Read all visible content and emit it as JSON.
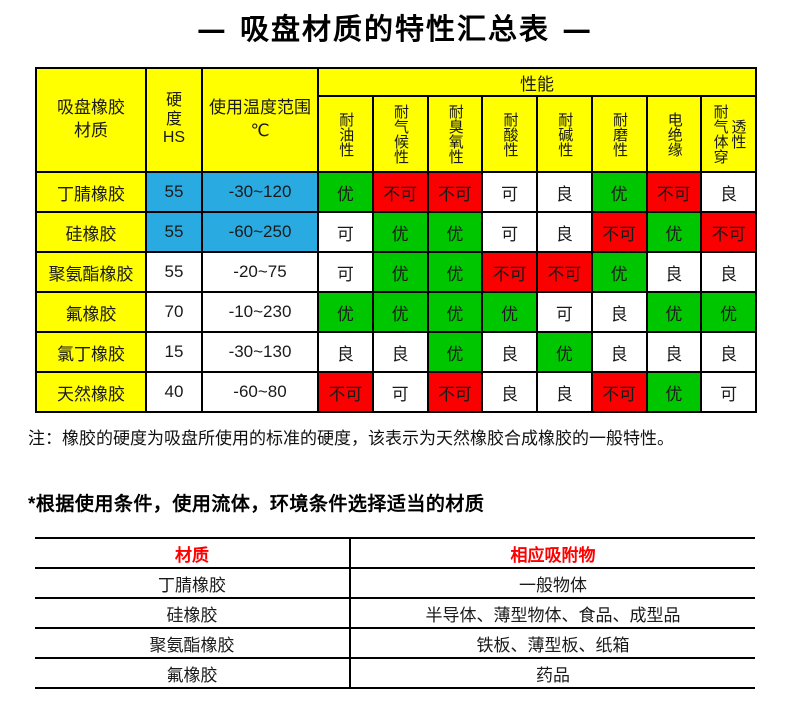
{
  "title": "— 吸盘材质的特性汇总表 —",
  "main_table": {
    "col_material": "吸盘橡胶\n材质",
    "col_hardness": "硬\n度\nHS",
    "col_temp": "使用温度范围\n℃",
    "perf_group": "性能",
    "perf_headers": [
      "耐油性",
      "耐气候性",
      "耐臭氧性",
      "耐酸性",
      "耐碱性",
      "耐磨性",
      "电绝缘",
      "耐气体穿透性"
    ],
    "legend_colors": {
      "yellow": "#ffff00",
      "blue": "#29abe2",
      "green": "#00c600",
      "red": "#fb0000",
      "white": "#ffffff"
    },
    "rows": [
      {
        "material": "丁腈橡胶",
        "hardness": "55",
        "hardness_bg": "blue",
        "temp": "-30~120",
        "temp_bg": "blue",
        "perf": [
          {
            "t": "优",
            "bg": "green"
          },
          {
            "t": "不可",
            "bg": "red"
          },
          {
            "t": "不可",
            "bg": "red"
          },
          {
            "t": "可",
            "bg": "white"
          },
          {
            "t": "良",
            "bg": "white"
          },
          {
            "t": "优",
            "bg": "green"
          },
          {
            "t": "不可",
            "bg": "red"
          },
          {
            "t": "良",
            "bg": "white"
          }
        ]
      },
      {
        "material": "硅橡胶",
        "hardness": "55",
        "hardness_bg": "blue",
        "temp": "-60~250",
        "temp_bg": "blue",
        "perf": [
          {
            "t": "可",
            "bg": "white"
          },
          {
            "t": "优",
            "bg": "green"
          },
          {
            "t": "优",
            "bg": "green"
          },
          {
            "t": "可",
            "bg": "white"
          },
          {
            "t": "良",
            "bg": "white"
          },
          {
            "t": "不可",
            "bg": "red"
          },
          {
            "t": "优",
            "bg": "green"
          },
          {
            "t": "不可",
            "bg": "red"
          }
        ]
      },
      {
        "material": "聚氨酯橡胶",
        "hardness": "55",
        "hardness_bg": "white",
        "temp": "-20~75",
        "temp_bg": "white",
        "perf": [
          {
            "t": "可",
            "bg": "white"
          },
          {
            "t": "优",
            "bg": "green"
          },
          {
            "t": "优",
            "bg": "green"
          },
          {
            "t": "不可",
            "bg": "red"
          },
          {
            "t": "不可",
            "bg": "red"
          },
          {
            "t": "优",
            "bg": "green"
          },
          {
            "t": "良",
            "bg": "white"
          },
          {
            "t": "良",
            "bg": "white"
          }
        ]
      },
      {
        "material": "氟橡胶",
        "hardness": "70",
        "hardness_bg": "white",
        "temp": "-10~230",
        "temp_bg": "white",
        "perf": [
          {
            "t": "优",
            "bg": "green"
          },
          {
            "t": "优",
            "bg": "green"
          },
          {
            "t": "优",
            "bg": "green"
          },
          {
            "t": "优",
            "bg": "green"
          },
          {
            "t": "可",
            "bg": "white"
          },
          {
            "t": "良",
            "bg": "white"
          },
          {
            "t": "优",
            "bg": "green"
          },
          {
            "t": "优",
            "bg": "green"
          }
        ]
      },
      {
        "material": "氯丁橡胶",
        "hardness": "15",
        "hardness_bg": "white",
        "temp": "-30~130",
        "temp_bg": "white",
        "perf": [
          {
            "t": "良",
            "bg": "white"
          },
          {
            "t": "良",
            "bg": "white"
          },
          {
            "t": "优",
            "bg": "green"
          },
          {
            "t": "良",
            "bg": "white"
          },
          {
            "t": "优",
            "bg": "green"
          },
          {
            "t": "良",
            "bg": "white"
          },
          {
            "t": "良",
            "bg": "white"
          },
          {
            "t": "良",
            "bg": "white"
          }
        ]
      },
      {
        "material": "天然橡胶",
        "hardness": "40",
        "hardness_bg": "white",
        "temp": "-60~80",
        "temp_bg": "white",
        "perf": [
          {
            "t": "不可",
            "bg": "red"
          },
          {
            "t": "可",
            "bg": "white"
          },
          {
            "t": "不可",
            "bg": "red"
          },
          {
            "t": "良",
            "bg": "white"
          },
          {
            "t": "良",
            "bg": "white"
          },
          {
            "t": "不可",
            "bg": "red"
          },
          {
            "t": "优",
            "bg": "green"
          },
          {
            "t": "可",
            "bg": "white"
          }
        ]
      }
    ]
  },
  "note": "注：橡胶的硬度为吸盘所使用的标准的硬度，该表示为天然橡胶合成橡胶的一般特性。",
  "tip": "*根据使用条件，使用流体，环境条件选择适当的材质",
  "application_table": {
    "header_color": "#ff0000",
    "headers": [
      "材质",
      "相应吸附物"
    ],
    "rows": [
      {
        "material": "丁腈橡胶",
        "objects": "一般物体"
      },
      {
        "material": "硅橡胶",
        "objects": "半导体、薄型物体、食品、成型品"
      },
      {
        "material": "聚氨酯橡胶",
        "objects": "铁板、薄型板、纸箱"
      },
      {
        "material": "氟橡胶",
        "objects": "药品"
      }
    ]
  }
}
